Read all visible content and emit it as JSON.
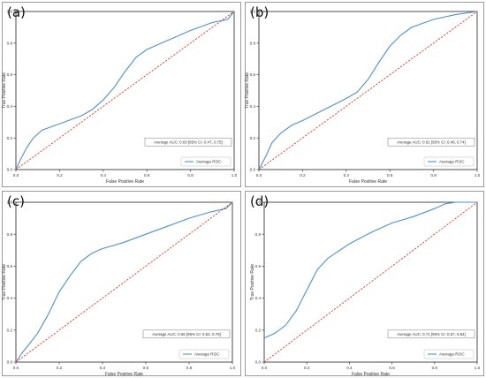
{
  "chart_data": [
    {
      "type": "line",
      "panel_label": "(a)",
      "xlabel": "False Positive Rate",
      "ylabel": "True Positive Rate",
      "xlim": [
        0,
        1
      ],
      "ylim": [
        0,
        1
      ],
      "xticks": [
        "0.0",
        "0.2",
        "0.4",
        "0.6",
        "0.8",
        "1.0"
      ],
      "yticks": [
        "0.0",
        "0.2",
        "0.4",
        "0.6",
        "0.8",
        "1.0"
      ],
      "annotation": "Average AUC: 0.63 [95% CI: 0.47, 0.75]",
      "legend": "Average ROC",
      "legend_position": "lower-right",
      "series": [
        {
          "name": "Average ROC",
          "color": "#4f90c8",
          "x": [
            0,
            0.02,
            0.05,
            0.08,
            0.12,
            0.2,
            0.3,
            0.35,
            0.4,
            0.45,
            0.5,
            0.55,
            0.6,
            0.7,
            0.8,
            0.9,
            0.97,
            1.0
          ],
          "y": [
            0,
            0.06,
            0.14,
            0.2,
            0.25,
            0.29,
            0.34,
            0.38,
            0.44,
            0.52,
            0.62,
            0.71,
            0.76,
            0.82,
            0.88,
            0.93,
            0.95,
            1.0
          ]
        },
        {
          "name": "",
          "color": "#d33a2a",
          "dashed": true,
          "x": [
            0,
            1
          ],
          "y": [
            0,
            1
          ]
        }
      ]
    },
    {
      "type": "line",
      "panel_label": "(b)",
      "xlabel": "False Positive Rate",
      "ylabel": "True Positive Rate",
      "xlim": [
        0,
        1
      ],
      "ylim": [
        0,
        1
      ],
      "xticks": [
        "0.0",
        "0.2",
        "0.4",
        "0.6",
        "0.8",
        "1.0"
      ],
      "yticks": [
        "0.0",
        "0.2",
        "0.4",
        "0.6",
        "0.8",
        "1.0"
      ],
      "annotation": "Average AUC: 0.61 [95% CI: 0.48, 0.74]",
      "legend": "Average ROC",
      "legend_position": "lower-right",
      "series": [
        {
          "name": "Average ROC",
          "color": "#4f90c8",
          "x": [
            0,
            0.03,
            0.06,
            0.1,
            0.15,
            0.2,
            0.3,
            0.4,
            0.45,
            0.5,
            0.55,
            0.6,
            0.65,
            0.7,
            0.8,
            0.9,
            1.0
          ],
          "y": [
            0,
            0.08,
            0.17,
            0.23,
            0.28,
            0.31,
            0.38,
            0.45,
            0.49,
            0.57,
            0.68,
            0.78,
            0.85,
            0.9,
            0.95,
            0.98,
            1.0
          ]
        },
        {
          "name": "",
          "color": "#d33a2a",
          "dashed": true,
          "x": [
            0,
            1
          ],
          "y": [
            0,
            1
          ]
        }
      ]
    },
    {
      "type": "line",
      "panel_label": "(c)",
      "xlabel": "False Positive Rate",
      "ylabel": "True Positive Rate",
      "xlim": [
        0,
        1
      ],
      "ylim": [
        0,
        1
      ],
      "xticks": [
        "0.0",
        "0.2",
        "0.4",
        "0.6",
        "0.8",
        "1.0"
      ],
      "yticks": [
        "0.0",
        "0.2",
        "0.4",
        "0.6",
        "0.8",
        "1.0"
      ],
      "annotation": "Average AUC: 0.66 [95% CI: 0.52, 0.79]",
      "legend": "Average ROC",
      "legend_position": "lower-right",
      "series": [
        {
          "name": "Average ROC",
          "color": "#4f90c8",
          "x": [
            0,
            0.03,
            0.06,
            0.1,
            0.15,
            0.2,
            0.25,
            0.3,
            0.35,
            0.4,
            0.5,
            0.6,
            0.7,
            0.8,
            0.9,
            0.97,
            1.0
          ],
          "y": [
            0,
            0.06,
            0.11,
            0.18,
            0.3,
            0.44,
            0.54,
            0.63,
            0.68,
            0.71,
            0.75,
            0.8,
            0.85,
            0.9,
            0.94,
            0.96,
            1.0
          ]
        },
        {
          "name": "",
          "color": "#d33a2a",
          "dashed": true,
          "x": [
            0,
            1
          ],
          "y": [
            0,
            1
          ]
        }
      ]
    },
    {
      "type": "line",
      "panel_label": "(d)",
      "xlabel": "False Positive Rate",
      "ylabel": "True Positive Rate",
      "xlim": [
        0,
        1
      ],
      "ylim": [
        0,
        1
      ],
      "xticks": [
        "0.0",
        "0.2",
        "0.4",
        "0.6",
        "0.8",
        "1.0"
      ],
      "yticks": [
        "0.0",
        "0.2",
        "0.4",
        "0.6",
        "0.8",
        "1.0"
      ],
      "annotation": "Average AUC: 0.71 [95% CI: 0.57, 0.84]",
      "legend": "Average ROC",
      "legend_position": "lower-right",
      "series": [
        {
          "name": "Average ROC",
          "color": "#4f90c8",
          "x": [
            0,
            0.05,
            0.1,
            0.15,
            0.2,
            0.25,
            0.3,
            0.4,
            0.5,
            0.6,
            0.7,
            0.8,
            0.85,
            0.9,
            0.95,
            1.0
          ],
          "y": [
            0.15,
            0.18,
            0.23,
            0.32,
            0.45,
            0.58,
            0.65,
            0.74,
            0.81,
            0.87,
            0.91,
            0.96,
            0.99,
            1.0,
            1.0,
            1.0
          ]
        },
        {
          "name": "",
          "color": "#d33a2a",
          "dashed": true,
          "x": [
            0,
            1
          ],
          "y": [
            0,
            1
          ]
        }
      ]
    }
  ]
}
